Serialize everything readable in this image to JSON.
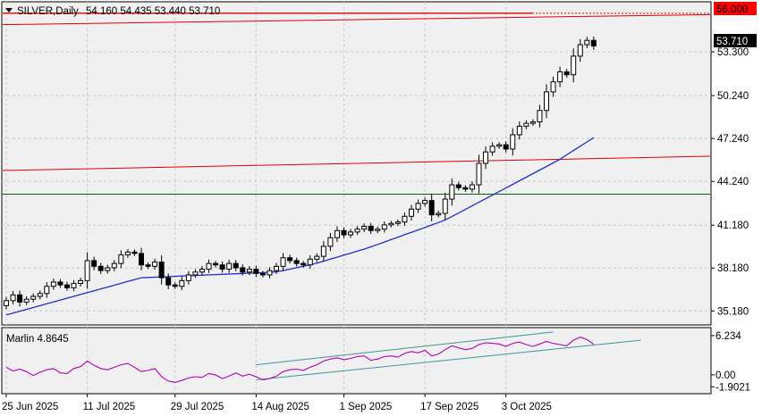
{
  "header": {
    "symbol": "SILVER,Daily",
    "ohlc": "54.160 54.435 53.440 53.710",
    "indicator_label": "Marlin 4.8645"
  },
  "colors": {
    "background": "#ffffff",
    "plot_background": "#f0f0f0",
    "grid": "#c8c8c8",
    "candle": "#000000",
    "resistance_line": "#e00000",
    "support_line": "#006400",
    "moving_average": "#1e32c8",
    "oscillator": "#b400b4",
    "channel": "#3c9696",
    "price_badge": "#000000",
    "level_badge": "#ff0000"
  },
  "chart_data": [
    {
      "type": "candlestick",
      "title": "SILVER,Daily",
      "y_ticks": [
        "53.300",
        "50.240",
        "47.240",
        "44.240",
        "41.180",
        "38.180",
        "35.180"
      ],
      "y_tick_values": [
        53.3,
        50.24,
        47.24,
        44.24,
        41.18,
        38.18,
        35.18
      ],
      "ylim": [
        34.2,
        56.8
      ],
      "x_ticks": [
        "25 Jun 2025",
        "11 Jul 2025",
        "29 Jul 2025",
        "14 Aug 2025",
        "1 Sep 2025",
        "17 Sep 2025",
        "3 Oct 2025"
      ],
      "x_tick_index": [
        0,
        12,
        25,
        37,
        50,
        62,
        74
      ],
      "current_price": "53.710",
      "current_price_value": 53.71,
      "level_label": "56.000",
      "level_value": 56.0,
      "grid": true,
      "closes": [
        35.9,
        36.3,
        35.8,
        36.0,
        36.2,
        36.4,
        36.9,
        37.2,
        37.0,
        36.8,
        37.1,
        37.3,
        38.7,
        38.3,
        38.0,
        38.2,
        38.5,
        39.1,
        39.3,
        39.2,
        38.4,
        38.3,
        38.6,
        37.5,
        37.0,
        36.9,
        37.3,
        37.7,
        37.9,
        38.1,
        38.5,
        38.4,
        38.1,
        38.5,
        38.2,
        37.9,
        38.1,
        37.8,
        37.7,
        38.0,
        38.3,
        38.9,
        38.7,
        38.5,
        38.4,
        38.8,
        39.0,
        39.7,
        40.3,
        40.8,
        40.5,
        40.7,
        40.9,
        41.1,
        40.8,
        40.9,
        41.2,
        41.3,
        41.4,
        41.8,
        42.3,
        42.7,
        42.9,
        41.9,
        42.0,
        43.0,
        44.0,
        43.8,
        43.7,
        44.0,
        45.5,
        46.3,
        46.7,
        46.8,
        46.5,
        47.5,
        48.1,
        48.3,
        48.4,
        49.2,
        50.5,
        51.2,
        51.9,
        51.7,
        53.0,
        53.8,
        54.1,
        53.71
      ],
      "series": [
        {
          "name": "MA",
          "values": [
            34.9,
            35.03,
            35.16,
            35.29,
            35.42,
            35.55,
            35.68,
            35.81,
            35.94,
            36.07,
            36.2,
            36.33,
            36.46,
            36.59,
            36.72,
            36.85,
            36.98,
            37.11,
            37.24,
            37.37,
            37.5,
            37.52,
            37.54,
            37.56,
            37.58,
            37.6,
            37.62,
            37.64,
            37.66,
            37.68,
            37.7,
            37.72,
            37.74,
            37.76,
            37.78,
            37.8,
            37.82,
            37.84,
            37.86,
            37.88,
            37.92,
            38.0,
            38.1,
            38.2,
            38.3,
            38.4,
            38.52,
            38.66,
            38.8,
            38.94,
            39.08,
            39.22,
            39.36,
            39.5,
            39.66,
            39.83,
            40.0,
            40.17,
            40.34,
            40.51,
            40.68,
            40.85,
            41.02,
            41.19,
            41.36,
            41.55,
            41.78,
            42.03,
            42.28,
            42.53,
            42.78,
            43.03,
            43.28,
            43.53,
            43.78,
            44.03,
            44.28,
            44.53,
            44.78,
            45.03,
            45.28,
            45.53,
            45.78,
            46.1,
            46.4,
            46.7,
            47.0,
            47.3
          ]
        },
        {
          "name": "Resistance line",
          "x": [
            0,
            94
          ],
          "values": [
            55.2,
            55.9
          ]
        },
        {
          "name": "Lower red line",
          "x": [
            0,
            94
          ],
          "values": [
            45.0,
            46.0
          ]
        },
        {
          "name": "Green horizontal line",
          "x": [
            0,
            94
          ],
          "values": [
            43.35,
            43.35
          ]
        }
      ]
    },
    {
      "type": "line",
      "title": "Marlin 4.8645",
      "y_ticks": [
        "6.234",
        "0.00",
        "-1.9021"
      ],
      "y_tick_values": [
        6.234,
        0.0,
        -1.9021
      ],
      "ylim": [
        -3.0,
        7.5
      ],
      "grid": true,
      "series": [
        {
          "name": "Marlin",
          "values": [
            1.2,
            0.6,
            0.9,
            0.5,
            -0.1,
            0.4,
            0.8,
            1.0,
            0.3,
            0.2,
            1.0,
            1.3,
            2.2,
            1.5,
            1.0,
            0.8,
            1.2,
            1.6,
            1.8,
            1.2,
            0.5,
            0.7,
            1.0,
            -0.3,
            -1.0,
            -1.2,
            -0.9,
            -0.5,
            -0.3,
            -0.4,
            0.2,
            0.0,
            -0.6,
            -0.2,
            0.3,
            -0.2,
            0.1,
            -0.3,
            -0.8,
            -0.6,
            -0.2,
            0.5,
            0.8,
            0.9,
            0.7,
            1.2,
            1.6,
            2.2,
            2.5,
            2.7,
            2.4,
            2.6,
            2.9,
            3.0,
            2.3,
            2.5,
            2.9,
            3.0,
            2.8,
            3.4,
            3.7,
            3.5,
            3.9,
            3.0,
            3.3,
            4.0,
            4.6,
            4.3,
            4.0,
            4.2,
            4.8,
            5.1,
            5.0,
            4.9,
            4.5,
            5.0,
            5.2,
            4.8,
            4.5,
            4.9,
            5.3,
            5.0,
            4.8,
            4.6,
            5.5,
            6.0,
            5.6,
            4.86
          ]
        },
        {
          "name": "Upper channel",
          "x": [
            37,
            81
          ],
          "values": [
            1.6,
            6.8
          ]
        },
        {
          "name": "Lower channel",
          "x": [
            37,
            94
          ],
          "values": [
            -0.8,
            5.5
          ]
        }
      ]
    }
  ]
}
